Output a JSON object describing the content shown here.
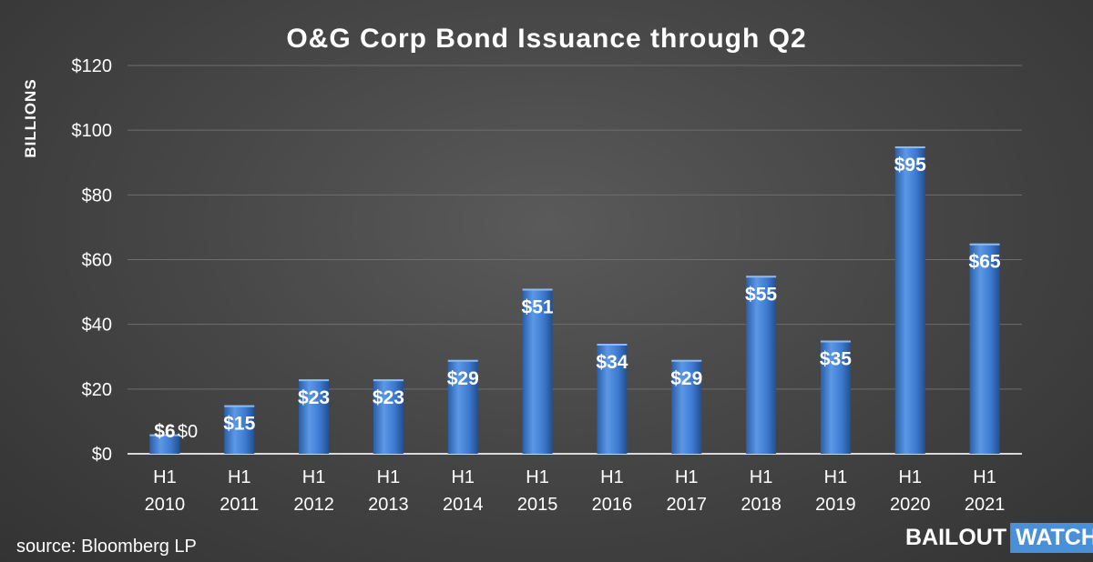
{
  "chart_data": {
    "type": "bar",
    "title": "O&G Corp Bond Issuance through Q2",
    "ylabel": "BILLIONS",
    "ylim": [
      0,
      120
    ],
    "yticks": [
      "$0",
      "$20",
      "$40",
      "$60",
      "$80",
      "$100",
      "$120"
    ],
    "ytick_values": [
      0,
      20,
      40,
      60,
      80,
      100,
      120
    ],
    "grid": true,
    "categories": [
      [
        "H1",
        "2010"
      ],
      [
        "H1",
        "2011"
      ],
      [
        "H1",
        "2012"
      ],
      [
        "H1",
        "2013"
      ],
      [
        "H1",
        "2014"
      ],
      [
        "H1",
        "2015"
      ],
      [
        "H1",
        "2016"
      ],
      [
        "H1",
        "2017"
      ],
      [
        "H1",
        "2018"
      ],
      [
        "H1",
        "2019"
      ],
      [
        "H1",
        "2020"
      ],
      [
        "H1",
        "2021"
      ]
    ],
    "values": [
      6,
      15,
      23,
      23,
      29,
      51,
      34,
      29,
      55,
      35,
      95,
      65
    ],
    "data_labels": [
      "$6",
      "$15",
      "$23",
      "$23",
      "$29",
      "$51",
      "$34",
      "$29",
      "$55",
      "$35",
      "$95",
      "$65"
    ],
    "extra_label": "$0",
    "bar_color": "#3d7ad0"
  },
  "source": "source: Bloomberg LP",
  "logo": {
    "word1": "BAILOUT",
    "word2": "WATCH"
  }
}
